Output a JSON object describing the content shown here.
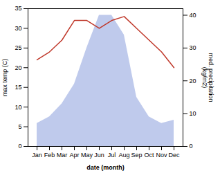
{
  "chart_data": {
    "type": "line",
    "categories": [
      "Jan",
      "Feb",
      "Mar",
      "Apr",
      "May",
      "Jun",
      "Jul",
      "Aug",
      "Sep",
      "Oct",
      "Nov",
      "Dec"
    ],
    "xlabel": "date (month)",
    "ylabel": "max temp (C)",
    "y2label": "med. precipitation\n(kg/m2)",
    "ylim": [
      0,
      35
    ],
    "yticks": [
      0,
      5,
      10,
      15,
      20,
      25,
      30,
      35
    ],
    "y2lim": [
      0,
      42
    ],
    "y2ticks": [
      0,
      10,
      20,
      30,
      40
    ],
    "series": [
      {
        "type": "area",
        "axis": "y2",
        "color": "#b8c4ea",
        "values": [
          7,
          9,
          13,
          19,
          30,
          40,
          40,
          34,
          15,
          9,
          7,
          8
        ]
      },
      {
        "type": "line",
        "color": "#c0392b",
        "values": [
          22,
          24,
          27,
          32,
          32,
          30,
          32,
          33,
          30,
          27,
          24,
          20
        ]
      }
    ]
  }
}
